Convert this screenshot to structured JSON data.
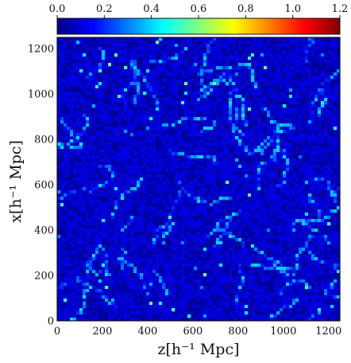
{
  "chart_data": {
    "type": "heatmap",
    "title": "",
    "xlabel": "z[h⁻¹ Mpc]",
    "ylabel": "x[h⁻¹ Mpc]",
    "xlim": [
      0,
      1250
    ],
    "ylim": [
      0,
      1250
    ],
    "x_ticks": [
      "0",
      "200",
      "400",
      "600",
      "800",
      "1000",
      "1200"
    ],
    "y_ticks": [
      "0",
      "200",
      "400",
      "600",
      "800",
      "1000",
      "1200"
    ],
    "colorbar": {
      "orientation": "horizontal",
      "placement": "top",
      "range": [
        0.0,
        1.2
      ],
      "ticks": [
        "0.0",
        "0.2",
        "0.4",
        "0.6",
        "0.8",
        "1.0",
        "1.2"
      ],
      "colormap": "jet",
      "colors": [
        "#00007f",
        "#0000ff",
        "#007fff",
        "#00ffff",
        "#7fff7f",
        "#ffff00",
        "#ff7f00",
        "#ff0000",
        "#7f0000"
      ]
    },
    "field_description_values": {
      "background_level": 0.05,
      "typical_peak_level": 0.4,
      "max_visible_level": 0.6
    },
    "grid": false,
    "legend": "none"
  }
}
